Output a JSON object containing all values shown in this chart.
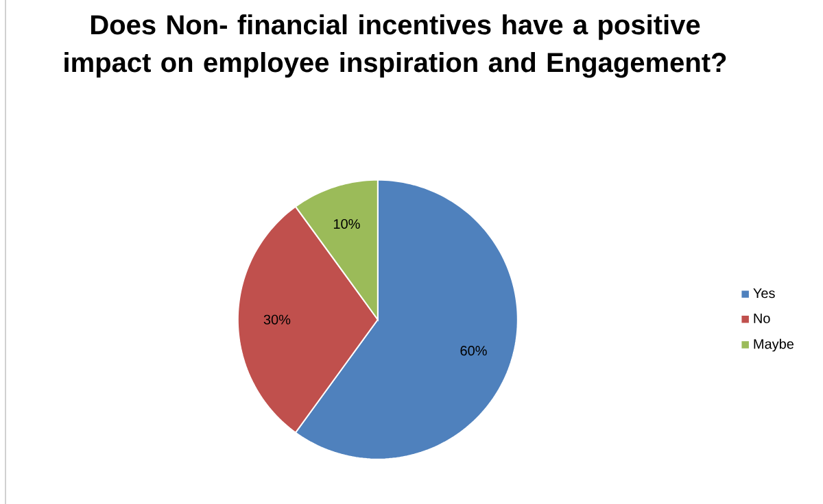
{
  "chart_data": {
    "type": "pie",
    "title": "Does Non- financial incentives have a positive impact on employee inspiration and Engagement?",
    "categories": [
      "Yes",
      "No",
      "Maybe"
    ],
    "values": [
      60,
      30,
      10
    ],
    "colors": [
      "#4f81bd",
      "#c0504d",
      "#9bbb59"
    ],
    "value_labels": [
      "60%",
      "30%",
      "10%"
    ],
    "legend": "right"
  }
}
